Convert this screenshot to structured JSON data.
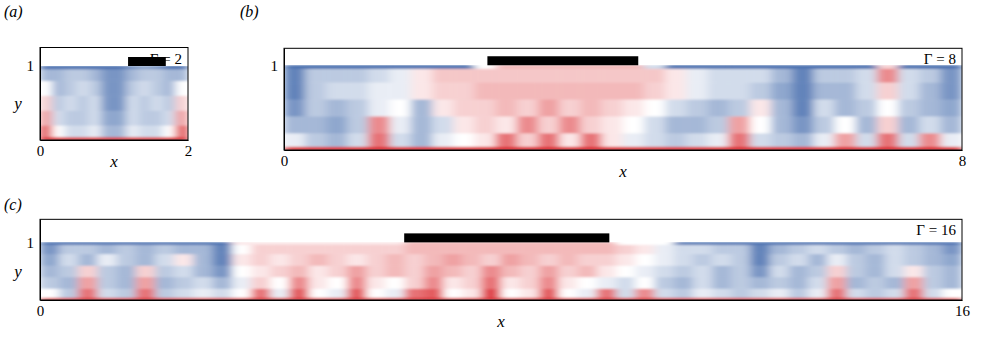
{
  "chart_data": [
    {
      "type": "heatmap",
      "panel": "(a)",
      "title": "Γ = 2",
      "x_label": "x",
      "y_label": "y",
      "xlim": [
        0,
        2
      ],
      "ylim": [
        0,
        1.25
      ],
      "xticks": [
        0,
        2
      ],
      "yticks": [
        1
      ],
      "lid": [
        1.19,
        1.7
      ],
      "cells_x": [
        0,
        2
      ],
      "cells_y": [
        0,
        0.04,
        0.2,
        0.4,
        0.6,
        0.8,
        0.96,
        1
      ],
      "zlim": [
        0,
        1
      ],
      "cells": [
        [
          0.95,
          0.95,
          0.95,
          0.95,
          0.95,
          0.95,
          0.95,
          0.95,
          0.95,
          0.95,
          0.95,
          0.95
        ],
        [
          0.85,
          0.5,
          0.4,
          0.4,
          0.45,
          0.3,
          0.3,
          0.45,
          0.4,
          0.4,
          0.5,
          0.85
        ],
        [
          0.7,
          0.4,
          0.35,
          0.35,
          0.4,
          0.25,
          0.25,
          0.4,
          0.35,
          0.35,
          0.4,
          0.7
        ],
        [
          0.6,
          0.35,
          0.4,
          0.35,
          0.4,
          0.2,
          0.2,
          0.4,
          0.35,
          0.4,
          0.35,
          0.6
        ],
        [
          0.5,
          0.3,
          0.35,
          0.4,
          0.35,
          0.2,
          0.2,
          0.35,
          0.4,
          0.35,
          0.3,
          0.5
        ],
        [
          0.3,
          0.3,
          0.35,
          0.35,
          0.3,
          0.2,
          0.2,
          0.3,
          0.35,
          0.35,
          0.3,
          0.3
        ],
        [
          0.1,
          0.1,
          0.1,
          0.1,
          0.1,
          0.1,
          0.1,
          0.2,
          0.25,
          0.2,
          0.1,
          0.1
        ]
      ]
    },
    {
      "type": "heatmap",
      "panel": "(b)",
      "title": "Γ = 8",
      "x_label": "x",
      "xlim": [
        0,
        8
      ],
      "ylim": [
        0,
        1.2
      ],
      "xticks": [
        0,
        8
      ],
      "yticks": [
        1
      ],
      "lid": [
        2.4,
        4.18
      ],
      "cells_x": [
        0,
        8
      ],
      "cells_y": [
        0,
        0.04,
        0.2,
        0.4,
        0.6,
        0.8,
        0.96,
        1
      ],
      "zlim": [
        0,
        1
      ],
      "cells": [
        [
          0.95,
          0.95,
          0.95,
          0.95,
          0.95,
          0.95,
          0.95,
          0.95,
          0.95,
          0.95,
          0.95,
          0.95,
          0.95,
          0.95,
          0.95,
          0.95,
          0.95,
          0.95,
          0.95,
          0.95,
          0.95,
          0.95,
          0.95,
          0.95,
          0.95,
          0.95,
          0.95,
          0.95,
          0.95,
          0.95,
          0.95,
          0.95
        ],
        [
          0.45,
          0.35,
          0.3,
          0.4,
          0.8,
          0.4,
          0.3,
          0.45,
          0.5,
          0.55,
          0.8,
          0.6,
          0.8,
          0.55,
          0.8,
          0.55,
          0.45,
          0.4,
          0.35,
          0.4,
          0.45,
          0.8,
          0.4,
          0.35,
          0.3,
          0.45,
          0.7,
          0.4,
          0.8,
          0.4,
          0.75,
          0.45
        ],
        [
          0.3,
          0.3,
          0.25,
          0.35,
          0.75,
          0.45,
          0.3,
          0.4,
          0.55,
          0.6,
          0.55,
          0.75,
          0.6,
          0.75,
          0.6,
          0.55,
          0.5,
          0.4,
          0.3,
          0.3,
          0.35,
          0.7,
          0.5,
          0.3,
          0.2,
          0.35,
          0.5,
          0.3,
          0.6,
          0.3,
          0.4,
          0.3
        ],
        [
          0.2,
          0.35,
          0.3,
          0.35,
          0.45,
          0.5,
          0.3,
          0.55,
          0.6,
          0.6,
          0.65,
          0.6,
          0.7,
          0.6,
          0.65,
          0.6,
          0.55,
          0.5,
          0.4,
          0.35,
          0.3,
          0.35,
          0.55,
          0.3,
          0.15,
          0.4,
          0.3,
          0.35,
          0.5,
          0.35,
          0.3,
          0.25
        ],
        [
          0.15,
          0.35,
          0.4,
          0.4,
          0.45,
          0.45,
          0.55,
          0.6,
          0.6,
          0.65,
          0.65,
          0.65,
          0.65,
          0.65,
          0.65,
          0.65,
          0.65,
          0.6,
          0.55,
          0.45,
          0.4,
          0.4,
          0.35,
          0.25,
          0.15,
          0.3,
          0.3,
          0.4,
          0.6,
          0.4,
          0.3,
          0.2
        ],
        [
          0.15,
          0.35,
          0.35,
          0.35,
          0.4,
          0.45,
          0.55,
          0.62,
          0.62,
          0.62,
          0.62,
          0.62,
          0.62,
          0.62,
          0.62,
          0.62,
          0.62,
          0.62,
          0.55,
          0.45,
          0.4,
          0.4,
          0.4,
          0.3,
          0.15,
          0.35,
          0.35,
          0.4,
          0.75,
          0.4,
          0.35,
          0.2
        ],
        [
          0.1,
          0.1,
          0.1,
          0.1,
          0.1,
          0.1,
          0.1,
          0.1,
          0.1,
          0.5,
          0.65,
          0.65,
          0.65,
          0.65,
          0.65,
          0.65,
          0.65,
          0.4,
          0.1,
          0.1,
          0.1,
          0.1,
          0.1,
          0.1,
          0.1,
          0.1,
          0.1,
          0.1,
          0.6,
          0.1,
          0.1,
          0.1
        ]
      ]
    },
    {
      "type": "heatmap",
      "panel": "(c)",
      "title": "Γ = 16",
      "x_label": "x",
      "y_label": "y",
      "xlim": [
        0,
        16
      ],
      "ylim": [
        0,
        1.4
      ],
      "xticks": [
        0,
        16
      ],
      "yticks": [
        1
      ],
      "lid": [
        6.32,
        9.88
      ],
      "cells_x": [
        0,
        16
      ],
      "cells_y": [
        0,
        0.04,
        0.2,
        0.4,
        0.6,
        0.8,
        0.96,
        1
      ],
      "zlim": [
        0,
        1
      ],
      "cells": [
        [
          0.95,
          0.95,
          0.95,
          0.95,
          0.95,
          0.95,
          0.95,
          0.95,
          0.95,
          0.95,
          0.95,
          0.95,
          0.95,
          0.95,
          0.95,
          0.95,
          0.95,
          0.95,
          0.95,
          0.95,
          0.95,
          0.95,
          0.95,
          0.95,
          0.95,
          0.95,
          0.95,
          0.95,
          0.95,
          0.95,
          0.95,
          0.95,
          0.95,
          0.95,
          0.95,
          0.95,
          0.95,
          0.95,
          0.95,
          0.95,
          0.95,
          0.95,
          0.95,
          0.95,
          0.95,
          0.95,
          0.95,
          0.95
        ],
        [
          0.5,
          0.35,
          0.8,
          0.4,
          0.35,
          0.8,
          0.35,
          0.4,
          0.45,
          0.4,
          0.5,
          0.8,
          0.45,
          0.85,
          0.5,
          0.45,
          0.85,
          0.5,
          0.45,
          0.8,
          0.85,
          0.5,
          0.55,
          0.9,
          0.5,
          0.55,
          0.85,
          0.5,
          0.45,
          0.8,
          0.4,
          0.75,
          0.4,
          0.35,
          0.45,
          0.4,
          0.35,
          0.4,
          0.45,
          0.35,
          0.45,
          0.8,
          0.4,
          0.35,
          0.4,
          0.8,
          0.4,
          0.5
        ],
        [
          0.35,
          0.3,
          0.7,
          0.35,
          0.3,
          0.7,
          0.3,
          0.35,
          0.4,
          0.3,
          0.45,
          0.6,
          0.5,
          0.75,
          0.55,
          0.5,
          0.75,
          0.55,
          0.5,
          0.6,
          0.75,
          0.55,
          0.6,
          0.8,
          0.55,
          0.6,
          0.75,
          0.55,
          0.5,
          0.45,
          0.4,
          0.5,
          0.35,
          0.3,
          0.4,
          0.3,
          0.35,
          0.3,
          0.35,
          0.3,
          0.4,
          0.7,
          0.3,
          0.35,
          0.3,
          0.7,
          0.35,
          0.3
        ],
        [
          0.3,
          0.35,
          0.6,
          0.35,
          0.3,
          0.6,
          0.35,
          0.4,
          0.3,
          0.2,
          0.5,
          0.55,
          0.6,
          0.65,
          0.55,
          0.6,
          0.7,
          0.6,
          0.65,
          0.6,
          0.7,
          0.65,
          0.6,
          0.75,
          0.65,
          0.6,
          0.7,
          0.6,
          0.65,
          0.55,
          0.5,
          0.45,
          0.4,
          0.35,
          0.4,
          0.3,
          0.35,
          0.2,
          0.4,
          0.3,
          0.35,
          0.6,
          0.35,
          0.3,
          0.4,
          0.55,
          0.35,
          0.3
        ],
        [
          0.25,
          0.4,
          0.3,
          0.45,
          0.35,
          0.3,
          0.4,
          0.55,
          0.3,
          0.15,
          0.55,
          0.6,
          0.55,
          0.6,
          0.65,
          0.6,
          0.55,
          0.6,
          0.65,
          0.6,
          0.65,
          0.7,
          0.65,
          0.6,
          0.7,
          0.65,
          0.6,
          0.65,
          0.6,
          0.6,
          0.55,
          0.5,
          0.45,
          0.4,
          0.35,
          0.4,
          0.35,
          0.15,
          0.35,
          0.4,
          0.3,
          0.45,
          0.35,
          0.3,
          0.4,
          0.35,
          0.3,
          0.25
        ],
        [
          0.2,
          0.35,
          0.35,
          0.3,
          0.35,
          0.3,
          0.35,
          0.3,
          0.3,
          0.15,
          0.5,
          0.6,
          0.6,
          0.6,
          0.6,
          0.6,
          0.6,
          0.6,
          0.6,
          0.65,
          0.65,
          0.65,
          0.65,
          0.65,
          0.65,
          0.65,
          0.65,
          0.65,
          0.65,
          0.65,
          0.6,
          0.55,
          0.45,
          0.4,
          0.4,
          0.35,
          0.35,
          0.15,
          0.3,
          0.35,
          0.4,
          0.35,
          0.3,
          0.35,
          0.4,
          0.35,
          0.3,
          0.2
        ],
        [
          0.1,
          0.1,
          0.1,
          0.1,
          0.1,
          0.1,
          0.1,
          0.1,
          0.1,
          0.1,
          0.55,
          0.55,
          0.55,
          0.55,
          0.55,
          0.55,
          0.55,
          0.55,
          0.55,
          0.65,
          0.65,
          0.65,
          0.65,
          0.65,
          0.65,
          0.65,
          0.65,
          0.65,
          0.65,
          0.65,
          0.5,
          0.5,
          0.5,
          0.1,
          0.1,
          0.1,
          0.1,
          0.1,
          0.1,
          0.1,
          0.1,
          0.1,
          0.1,
          0.1,
          0.1,
          0.1,
          0.1,
          0.1
        ]
      ]
    }
  ]
}
